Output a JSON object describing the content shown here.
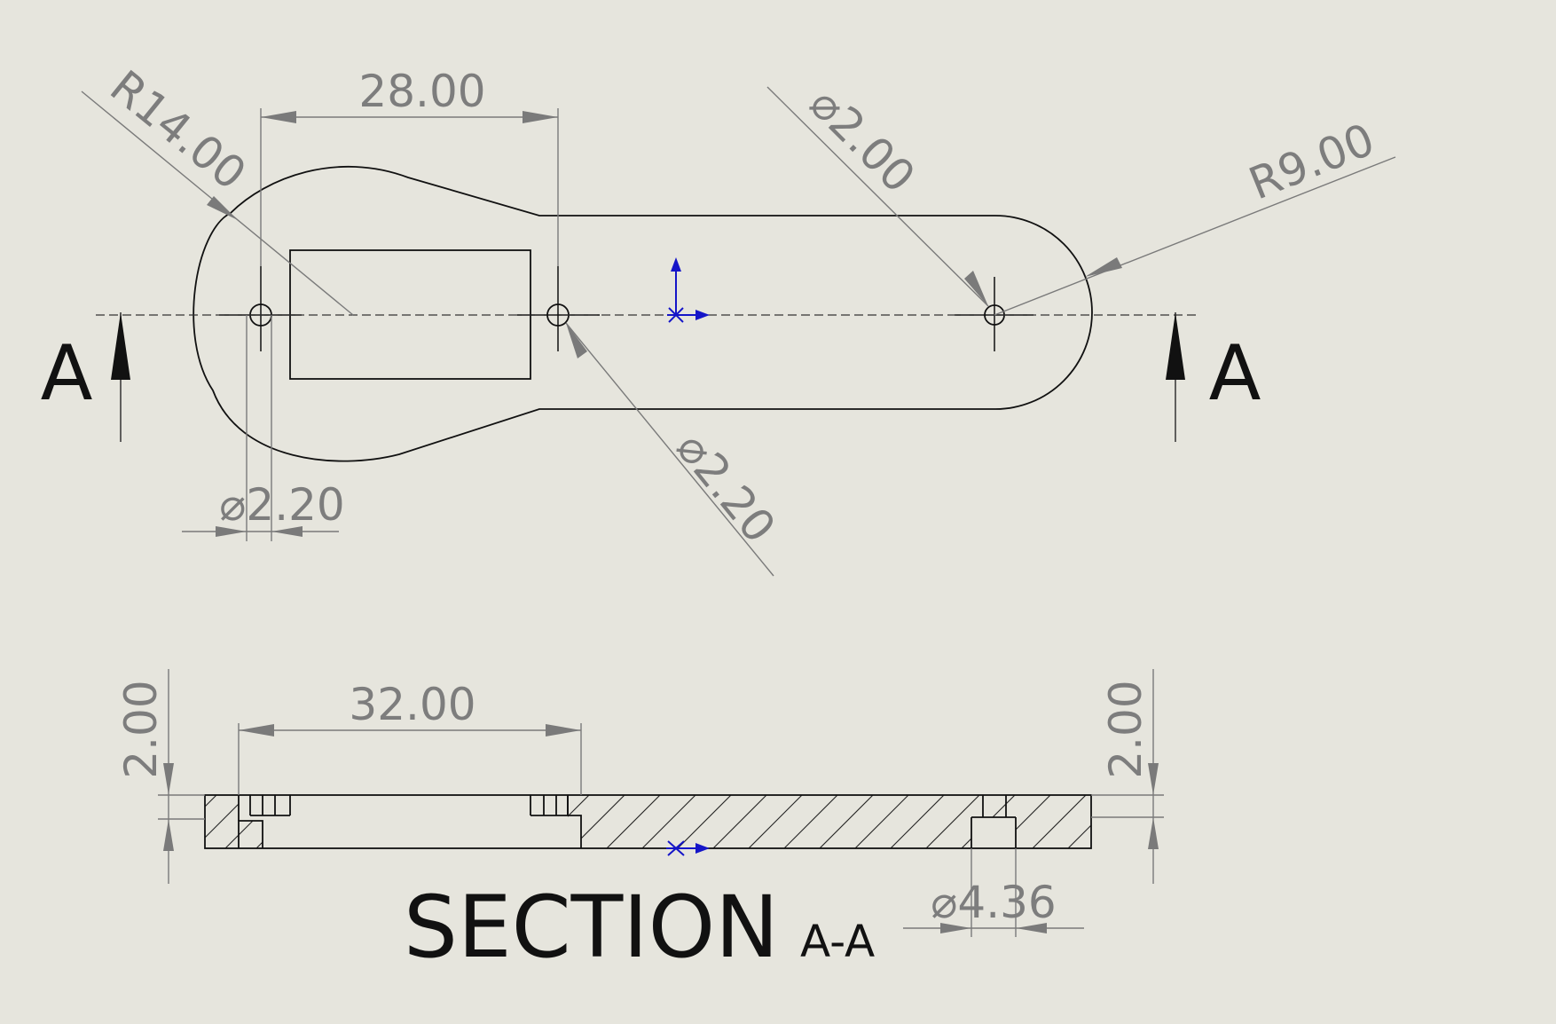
{
  "top_view": {
    "dimensions": {
      "radius_big": "R14.00",
      "hole_spacing": "28.00",
      "hole_dia_small": "⌀2.00",
      "radius_small": "R9.00",
      "hole_dia_left": "⌀2.20",
      "hole_dia_mid": "⌀2.20"
    },
    "section_marker": {
      "left": "A",
      "right": "A"
    }
  },
  "section_view": {
    "dimensions": {
      "span": "32.00",
      "thickness_left": "2.00",
      "thickness_right": "2.00",
      "counterbore_dia": "⌀4.36"
    },
    "title": "SECTION",
    "title_suffix": "A-A"
  },
  "colors": {
    "background": "#e6e5dd",
    "geometry": "#111111",
    "dimension": "#7a7a7a",
    "origin": "#1515c8"
  }
}
